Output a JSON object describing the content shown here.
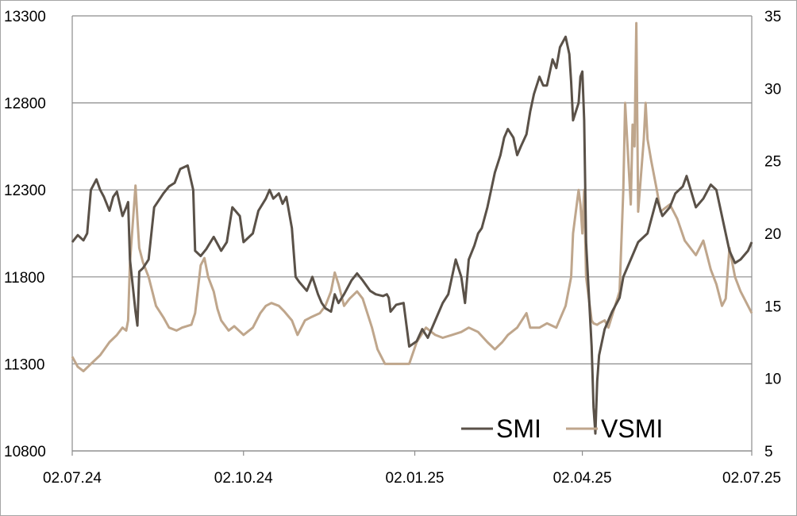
{
  "chart_data": {
    "type": "line",
    "title": "",
    "xlabel": "",
    "ylabel": "",
    "x_axis": {
      "tick_labels": [
        "02.07.24",
        "02.10.24",
        "02.01.25",
        "02.04.25",
        "02.07.25"
      ],
      "tick_dates": [
        "2024-07-02",
        "2024-10-02",
        "2025-01-02",
        "2025-04-02",
        "2025-07-02"
      ],
      "range": [
        "2024-07-02",
        "2025-07-02"
      ]
    },
    "y_left": {
      "ylim": [
        10800,
        13300
      ],
      "ticks": [
        10800,
        11300,
        11800,
        12300,
        12800,
        13300
      ],
      "tick_labels": [
        "10800",
        "11300",
        "11800",
        "12300",
        "12800",
        "13300"
      ]
    },
    "y_right": {
      "ylim": [
        5,
        35
      ],
      "ticks": [
        5,
        10,
        15,
        20,
        25,
        30,
        35
      ],
      "tick_labels": [
        "5",
        "10",
        "15",
        "20",
        "25",
        "30",
        "35"
      ]
    },
    "grid": "horizontal",
    "legend": {
      "placement": "bottom-right",
      "entries": [
        {
          "label": "SMI",
          "color": "#5a5148"
        },
        {
          "label": "VSMI",
          "color": "#bfa68c"
        }
      ]
    },
    "series": [
      {
        "name": "SMI",
        "axis": "left",
        "color": "#5a5148",
        "points": [
          [
            "2024-07-02",
            12000
          ],
          [
            "2024-07-05",
            12040
          ],
          [
            "2024-07-08",
            12010
          ],
          [
            "2024-07-10",
            12050
          ],
          [
            "2024-07-12",
            12300
          ],
          [
            "2024-07-15",
            12360
          ],
          [
            "2024-07-17",
            12300
          ],
          [
            "2024-07-19",
            12260
          ],
          [
            "2024-07-22",
            12180
          ],
          [
            "2024-07-24",
            12260
          ],
          [
            "2024-07-26",
            12290
          ],
          [
            "2024-07-29",
            12150
          ],
          [
            "2024-07-31",
            12200
          ],
          [
            "2024-08-01",
            12230
          ],
          [
            "2024-08-02",
            11900
          ],
          [
            "2024-08-05",
            11600
          ],
          [
            "2024-08-06",
            11520
          ],
          [
            "2024-08-07",
            11830
          ],
          [
            "2024-08-09",
            11850
          ],
          [
            "2024-08-12",
            11900
          ],
          [
            "2024-08-15",
            12200
          ],
          [
            "2024-08-20",
            12280
          ],
          [
            "2024-08-23",
            12320
          ],
          [
            "2024-08-26",
            12340
          ],
          [
            "2024-08-29",
            12420
          ],
          [
            "2024-09-02",
            12440
          ],
          [
            "2024-09-05",
            12300
          ],
          [
            "2024-09-06",
            11950
          ],
          [
            "2024-09-09",
            11920
          ],
          [
            "2024-09-12",
            11960
          ],
          [
            "2024-09-16",
            12030
          ],
          [
            "2024-09-19",
            11970
          ],
          [
            "2024-09-20",
            11950
          ],
          [
            "2024-09-23",
            12000
          ],
          [
            "2024-09-26",
            12200
          ],
          [
            "2024-09-30",
            12150
          ],
          [
            "2024-10-02",
            12000
          ],
          [
            "2024-10-07",
            12050
          ],
          [
            "2024-10-10",
            12180
          ],
          [
            "2024-10-14",
            12250
          ],
          [
            "2024-10-16",
            12300
          ],
          [
            "2024-10-18",
            12250
          ],
          [
            "2024-10-21",
            12280
          ],
          [
            "2024-10-23",
            12220
          ],
          [
            "2024-10-25",
            12260
          ],
          [
            "2024-10-28",
            12080
          ],
          [
            "2024-10-30",
            11800
          ],
          [
            "2024-11-01",
            11770
          ],
          [
            "2024-11-05",
            11720
          ],
          [
            "2024-11-08",
            11800
          ],
          [
            "2024-11-11",
            11700
          ],
          [
            "2024-11-13",
            11650
          ],
          [
            "2024-11-15",
            11620
          ],
          [
            "2024-11-18",
            11600
          ],
          [
            "2024-11-20",
            11700
          ],
          [
            "2024-11-22",
            11650
          ],
          [
            "2024-11-25",
            11700
          ],
          [
            "2024-11-27",
            11740
          ],
          [
            "2024-11-29",
            11780
          ],
          [
            "2024-12-02",
            11820
          ],
          [
            "2024-12-05",
            11780
          ],
          [
            "2024-12-09",
            11720
          ],
          [
            "2024-12-12",
            11700
          ],
          [
            "2024-12-16",
            11690
          ],
          [
            "2024-12-18",
            11700
          ],
          [
            "2024-12-19",
            11680
          ],
          [
            "2024-12-20",
            11600
          ],
          [
            "2024-12-23",
            11640
          ],
          [
            "2024-12-27",
            11650
          ],
          [
            "2024-12-30",
            11400
          ],
          [
            "2025-01-03",
            11430
          ],
          [
            "2025-01-06",
            11500
          ],
          [
            "2025-01-09",
            11450
          ],
          [
            "2025-01-13",
            11550
          ],
          [
            "2025-01-15",
            11600
          ],
          [
            "2025-01-17",
            11650
          ],
          [
            "2025-01-20",
            11700
          ],
          [
            "2025-01-22",
            11800
          ],
          [
            "2025-01-24",
            11900
          ],
          [
            "2025-01-27",
            11800
          ],
          [
            "2025-01-29",
            11650
          ],
          [
            "2025-01-31",
            11900
          ],
          [
            "2025-02-03",
            11980
          ],
          [
            "2025-02-05",
            12050
          ],
          [
            "2025-02-07",
            12080
          ],
          [
            "2025-02-10",
            12200
          ],
          [
            "2025-02-12",
            12300
          ],
          [
            "2025-02-14",
            12400
          ],
          [
            "2025-02-17",
            12500
          ],
          [
            "2025-02-19",
            12600
          ],
          [
            "2025-02-21",
            12650
          ],
          [
            "2025-02-24",
            12600
          ],
          [
            "2025-02-26",
            12500
          ],
          [
            "2025-02-28",
            12550
          ],
          [
            "2025-03-03",
            12620
          ],
          [
            "2025-03-05",
            12750
          ],
          [
            "2025-03-07",
            12850
          ],
          [
            "2025-03-10",
            12950
          ],
          [
            "2025-03-12",
            12900
          ],
          [
            "2025-03-14",
            12900
          ],
          [
            "2025-03-17",
            13050
          ],
          [
            "2025-03-19",
            13000
          ],
          [
            "2025-03-21",
            13120
          ],
          [
            "2025-03-24",
            13180
          ],
          [
            "2025-03-26",
            13080
          ],
          [
            "2025-03-27",
            12920
          ],
          [
            "2025-03-28",
            12700
          ],
          [
            "2025-03-31",
            12800
          ],
          [
            "2025-04-01",
            12950
          ],
          [
            "2025-04-02",
            12980
          ],
          [
            "2025-04-03",
            12700
          ],
          [
            "2025-04-04",
            12000
          ],
          [
            "2025-04-07",
            11400
          ],
          [
            "2025-04-08",
            11050
          ],
          [
            "2025-04-09",
            10900
          ],
          [
            "2025-04-10",
            11200
          ],
          [
            "2025-04-11",
            11350
          ],
          [
            "2025-04-14",
            11500
          ],
          [
            "2025-04-16",
            11550
          ],
          [
            "2025-04-18",
            11600
          ],
          [
            "2025-04-22",
            11680
          ],
          [
            "2025-04-24",
            11800
          ],
          [
            "2025-04-28",
            11900
          ],
          [
            "2025-05-02",
            12000
          ],
          [
            "2025-05-07",
            12050
          ],
          [
            "2025-05-12",
            12250
          ],
          [
            "2025-05-15",
            12150
          ],
          [
            "2025-05-19",
            12200
          ],
          [
            "2025-05-22",
            12280
          ],
          [
            "2025-05-26",
            12320
          ],
          [
            "2025-05-28",
            12380
          ],
          [
            "2025-06-02",
            12200
          ],
          [
            "2025-06-06",
            12250
          ],
          [
            "2025-06-10",
            12330
          ],
          [
            "2025-06-13",
            12300
          ],
          [
            "2025-06-17",
            12100
          ],
          [
            "2025-06-20",
            11950
          ],
          [
            "2025-06-23",
            11880
          ],
          [
            "2025-06-26",
            11900
          ],
          [
            "2025-06-30",
            11950
          ],
          [
            "2025-07-02",
            12000
          ]
        ]
      },
      {
        "name": "VSMI",
        "axis": "right",
        "color": "#bfa68c",
        "points": [
          [
            "2024-07-02",
            11.5
          ],
          [
            "2024-07-05",
            10.8
          ],
          [
            "2024-07-08",
            10.5
          ],
          [
            "2024-07-12",
            11.0
          ],
          [
            "2024-07-17",
            11.6
          ],
          [
            "2024-07-22",
            12.5
          ],
          [
            "2024-07-26",
            13.0
          ],
          [
            "2024-07-29",
            13.5
          ],
          [
            "2024-07-31",
            13.3
          ],
          [
            "2024-08-01",
            14.0
          ],
          [
            "2024-08-02",
            18.0
          ],
          [
            "2024-08-05",
            23.3
          ],
          [
            "2024-08-06",
            21.0
          ],
          [
            "2024-08-07",
            19.0
          ],
          [
            "2024-08-09",
            18.0
          ],
          [
            "2024-08-12",
            17.0
          ],
          [
            "2024-08-16",
            15.0
          ],
          [
            "2024-08-20",
            14.2
          ],
          [
            "2024-08-23",
            13.5
          ],
          [
            "2024-08-27",
            13.3
          ],
          [
            "2024-08-30",
            13.5
          ],
          [
            "2024-09-04",
            13.7
          ],
          [
            "2024-09-06",
            14.5
          ],
          [
            "2024-09-09",
            17.8
          ],
          [
            "2024-09-11",
            18.3
          ],
          [
            "2024-09-13",
            17.0
          ],
          [
            "2024-09-16",
            16.0
          ],
          [
            "2024-09-18",
            14.8
          ],
          [
            "2024-09-20",
            14.0
          ],
          [
            "2024-09-24",
            13.3
          ],
          [
            "2024-09-27",
            13.6
          ],
          [
            "2024-10-02",
            13.0
          ],
          [
            "2024-10-07",
            13.5
          ],
          [
            "2024-10-11",
            14.5
          ],
          [
            "2024-10-14",
            15.0
          ],
          [
            "2024-10-17",
            15.2
          ],
          [
            "2024-10-21",
            15.0
          ],
          [
            "2024-10-24",
            14.6
          ],
          [
            "2024-10-28",
            14.0
          ],
          [
            "2024-10-31",
            13.0
          ],
          [
            "2024-11-04",
            14.0
          ],
          [
            "2024-11-07",
            14.2
          ],
          [
            "2024-11-12",
            14.5
          ],
          [
            "2024-11-15",
            15.0
          ],
          [
            "2024-11-18",
            16.0
          ],
          [
            "2024-11-20",
            17.3
          ],
          [
            "2024-11-22",
            16.5
          ],
          [
            "2024-11-25",
            15.0
          ],
          [
            "2024-11-28",
            15.5
          ],
          [
            "2024-12-02",
            16.0
          ],
          [
            "2024-12-05",
            15.5
          ],
          [
            "2024-12-10",
            13.5
          ],
          [
            "2024-12-13",
            12.0
          ],
          [
            "2024-12-17",
            11.0
          ],
          [
            "2024-12-20",
            11.0
          ],
          [
            "2024-12-24",
            11.0
          ],
          [
            "2024-12-30",
            11.0
          ],
          [
            "2025-01-03",
            12.5
          ],
          [
            "2025-01-08",
            13.5
          ],
          [
            "2025-01-13",
            13.0
          ],
          [
            "2025-01-17",
            12.8
          ],
          [
            "2025-01-22",
            13.0
          ],
          [
            "2025-01-27",
            13.2
          ],
          [
            "2025-01-31",
            13.5
          ],
          [
            "2025-02-05",
            13.2
          ],
          [
            "2025-02-10",
            12.5
          ],
          [
            "2025-02-14",
            12.0
          ],
          [
            "2025-02-18",
            12.5
          ],
          [
            "2025-02-21",
            13.0
          ],
          [
            "2025-02-26",
            13.5
          ],
          [
            "2025-03-03",
            14.5
          ],
          [
            "2025-03-05",
            13.5
          ],
          [
            "2025-03-10",
            13.5
          ],
          [
            "2025-03-14",
            13.8
          ],
          [
            "2025-03-19",
            13.5
          ],
          [
            "2025-03-24",
            15.0
          ],
          [
            "2025-03-27",
            17.0
          ],
          [
            "2025-03-28",
            20.0
          ],
          [
            "2025-03-31",
            23.0
          ],
          [
            "2025-04-01",
            22.0
          ],
          [
            "2025-04-02",
            20.0
          ],
          [
            "2025-04-03",
            23.0
          ],
          [
            "2025-04-04",
            17.0
          ],
          [
            "2025-04-07",
            14.0
          ],
          [
            "2025-04-08",
            13.8
          ],
          [
            "2025-04-10",
            13.7
          ],
          [
            "2025-04-11",
            13.8
          ],
          [
            "2025-04-14",
            14.0
          ],
          [
            "2025-04-16",
            13.5
          ],
          [
            "2025-04-22",
            16.0
          ],
          [
            "2025-04-24",
            23.0
          ],
          [
            "2025-04-25",
            29.0
          ],
          [
            "2025-04-28",
            22.0
          ],
          [
            "2025-04-29",
            27.5
          ],
          [
            "2025-04-30",
            26.0
          ],
          [
            "2025-05-01",
            34.5
          ],
          [
            "2025-05-02",
            21.5
          ],
          [
            "2025-05-05",
            26.5
          ],
          [
            "2025-05-06",
            29.0
          ],
          [
            "2025-05-07",
            26.5
          ],
          [
            "2025-05-09",
            25.0
          ],
          [
            "2025-05-12",
            23.0
          ],
          [
            "2025-05-14",
            21.5
          ],
          [
            "2025-05-19",
            22.0
          ],
          [
            "2025-05-23",
            21.0
          ],
          [
            "2025-05-27",
            19.5
          ],
          [
            "2025-06-02",
            18.5
          ],
          [
            "2025-06-06",
            19.5
          ],
          [
            "2025-06-10",
            17.5
          ],
          [
            "2025-06-13",
            16.5
          ],
          [
            "2025-06-16",
            15.0
          ],
          [
            "2025-06-18",
            15.5
          ],
          [
            "2025-06-20",
            19.0
          ],
          [
            "2025-06-23",
            17.0
          ],
          [
            "2025-06-26",
            16.0
          ],
          [
            "2025-06-30",
            15.0
          ],
          [
            "2025-07-02",
            14.5
          ]
        ]
      }
    ]
  }
}
